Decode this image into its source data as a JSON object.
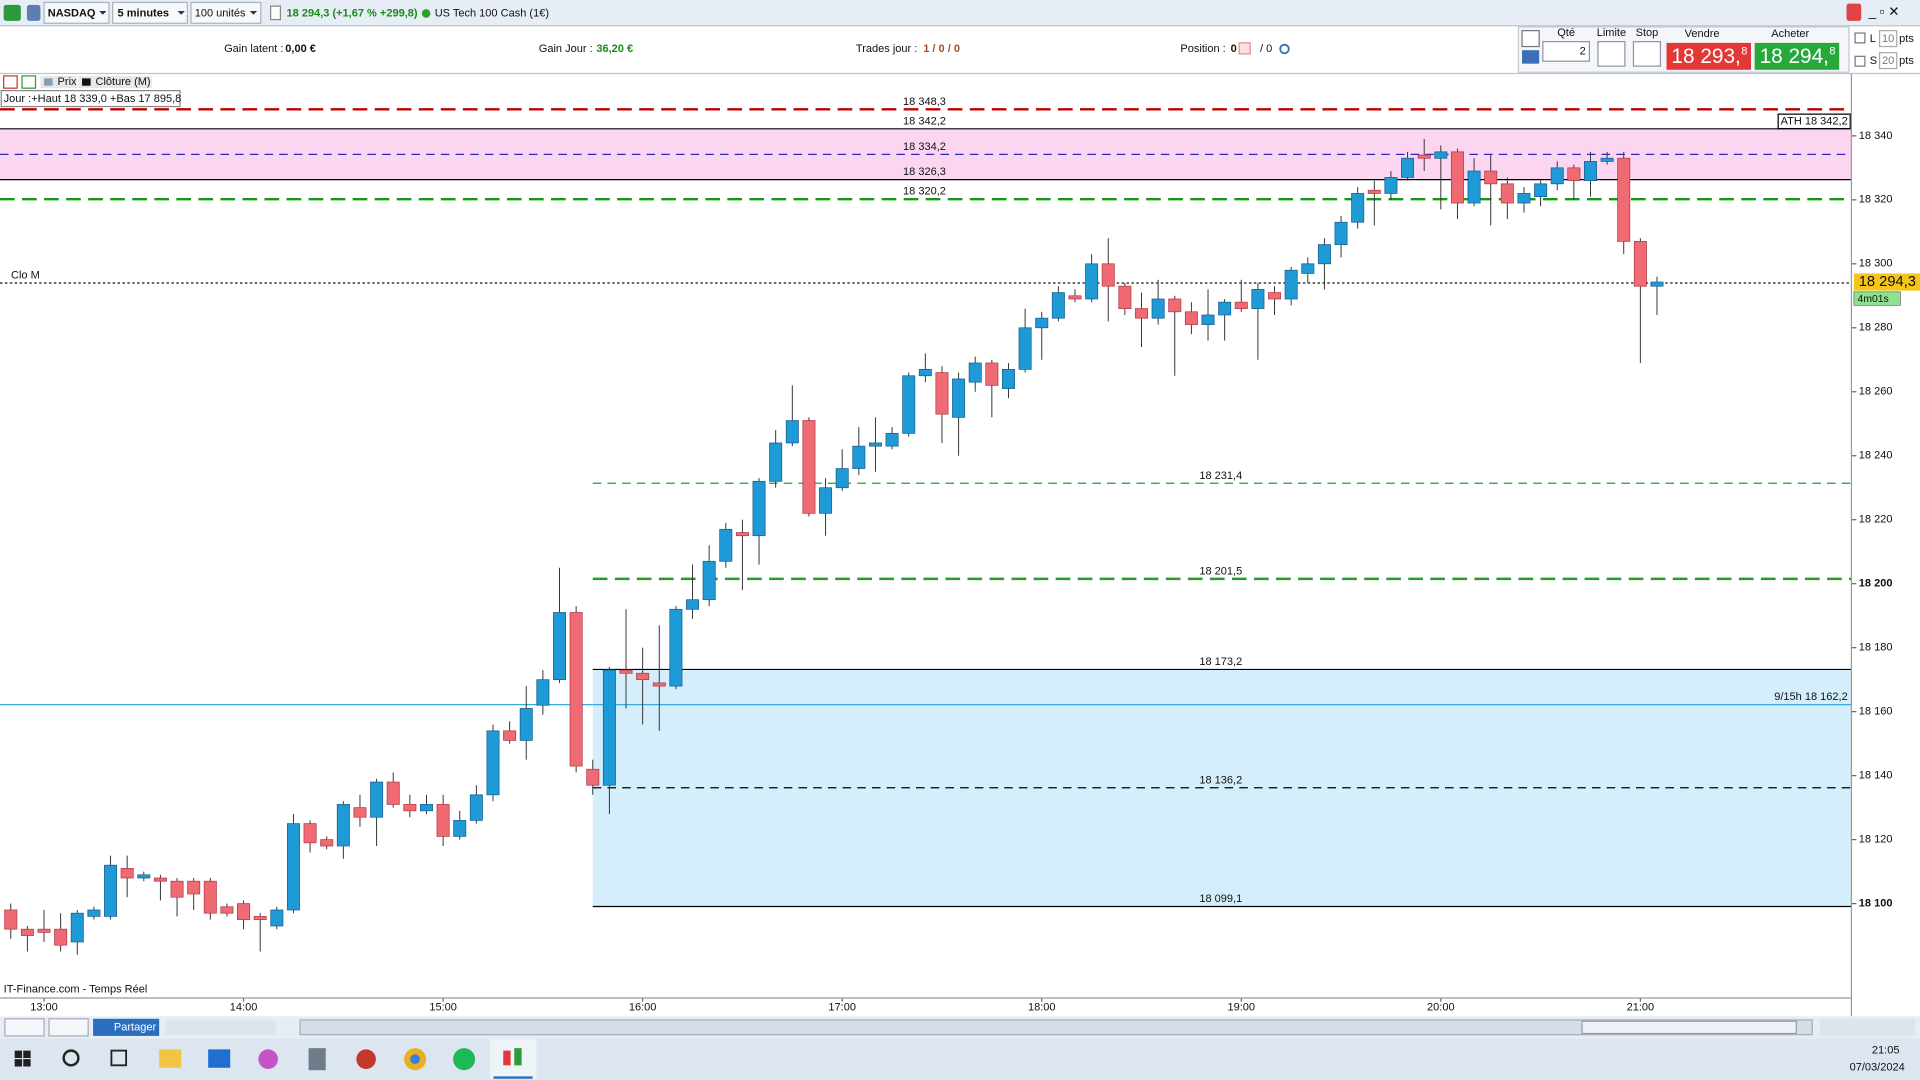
{
  "toolbar": {
    "symbol": "NASDAQ",
    "interval": "5 minutes",
    "size": "100 unités",
    "quote": "18 294,3 (+1,67 % +299,8)",
    "instrument": "US Tech 100 Cash (1€)"
  },
  "account": {
    "gain_latent_label": "Gain latent :",
    "gain_latent": "0,00 €",
    "gain_jour_label": "Gain Jour :",
    "gain_jour": "36,20 €",
    "trades_label": "Trades jour :",
    "trades": "1 / 0 / 0",
    "position_label": "Position :",
    "position": "0",
    "position_orders": "/ 0"
  },
  "order": {
    "qty_label": "Qté",
    "qty": "2",
    "limit": "Limite",
    "stop": "Stop",
    "sell_label": "Vendre",
    "sell": "18 293,",
    "sell_decimal": "8",
    "buy_label": "Acheter",
    "buy": "18 294,",
    "buy_decimal": "8",
    "long": "L",
    "long_pts": "10",
    "short": "S",
    "short_pts": "20",
    "pts": "pts"
  },
  "legend": {
    "price": "Prix",
    "close": "Clôture (M)",
    "day": "Jour :+Haut 18 339,0 +Bas 17 895,8"
  },
  "chart_data": {
    "type": "candlestick",
    "categories": [
      null,
      null,
      "13:00",
      null,
      null,
      null,
      null,
      null,
      null,
      null,
      null,
      null,
      null,
      null,
      "14:00",
      null,
      null,
      null,
      null,
      null,
      null,
      null,
      null,
      null,
      null,
      null,
      "15:00",
      null,
      null,
      null,
      null,
      null,
      null,
      null,
      null,
      null,
      null,
      null,
      "16:00",
      null,
      null,
      null,
      null,
      null,
      null,
      null,
      null,
      null,
      null,
      null,
      "17:00",
      null,
      null,
      null,
      null,
      null,
      null,
      null,
      null,
      null,
      null,
      null,
      "18:00",
      null,
      null,
      null,
      null,
      null,
      null,
      null,
      null,
      null,
      null,
      null,
      "19:00",
      null,
      null,
      null,
      null,
      null,
      null,
      null,
      null,
      null,
      null,
      null,
      "20:00",
      null,
      null,
      null,
      null,
      null,
      null,
      null,
      null,
      null,
      null,
      null,
      "21:00",
      null
    ],
    "open": [
      18098,
      18092,
      18092,
      18092,
      18088,
      18096,
      18096,
      18111,
      18108,
      18108,
      18107,
      18107,
      18107,
      18099,
      18100,
      18096,
      18093,
      18098,
      18125,
      18120,
      18118,
      18130,
      18127,
      18138,
      18131,
      18129,
      18131,
      18121,
      18126,
      18134,
      18154,
      18151,
      18162,
      18170,
      18191,
      18142,
      18137,
      18173,
      18172,
      18169,
      18168,
      18192,
      18195,
      18207,
      18216,
      18215,
      18232,
      18244,
      18251,
      18222,
      18230,
      18236,
      18243,
      18243,
      18247,
      18265,
      18266,
      18252,
      18263,
      18269,
      18261,
      18267,
      18280,
      18283,
      18290,
      18289,
      18300,
      18293,
      18286,
      18283,
      18289,
      18285,
      18281,
      18284,
      18288,
      18286,
      18291,
      18289,
      18297,
      18300,
      18306,
      18313,
      18323,
      18322,
      18327,
      18334,
      18333,
      18335,
      18319,
      18329,
      18325,
      18319,
      18321,
      18325,
      18330,
      18326,
      18332,
      18333,
      18307,
      18293
    ],
    "high": [
      18100,
      18093,
      18098,
      18097,
      18098,
      18099,
      18115,
      18115,
      18110,
      18109,
      18108,
      18108,
      18108,
      18100,
      18101,
      18097,
      18099,
      18128,
      18126,
      18121,
      18132,
      18134,
      18139,
      18141,
      18134,
      18134,
      18134,
      18129,
      18137,
      18156,
      18157,
      18168,
      18173,
      18205,
      18193,
      18145,
      18174,
      18192,
      18180,
      18187,
      18193,
      18206,
      18212,
      18219,
      18220,
      18233,
      18248,
      18262,
      18252,
      18233,
      18242,
      18249,
      18252,
      18249,
      18266,
      18272,
      18268,
      18266,
      18271,
      18270,
      18269,
      18286,
      18285,
      18293,
      18292,
      18303,
      18308,
      18294,
      18291,
      18295,
      18290,
      18288,
      18292,
      18289,
      18295,
      18294,
      18293,
      18299,
      18302,
      18308,
      18315,
      18324,
      18326,
      18329,
      18335,
      18339,
      18337,
      18336,
      18333,
      18334,
      18327,
      18324,
      18326,
      18332,
      18331,
      18335,
      18335,
      18335,
      18308,
      18296
    ],
    "low": [
      18089,
      18085,
      18088,
      18085,
      18084,
      18095,
      18095,
      18102,
      18107,
      18101,
      18096,
      18098,
      18095,
      18096,
      18092,
      18085,
      18092,
      18097,
      18116,
      18117,
      18114,
      18124,
      18118,
      18130,
      18127,
      18128,
      18118,
      18120,
      18125,
      18132,
      18150,
      18145,
      18159,
      18169,
      18141,
      18134,
      18128,
      18161,
      18156,
      18154,
      18167,
      18189,
      18193,
      18205,
      18198,
      18206,
      18230,
      18243,
      18221,
      18215,
      18229,
      18234,
      18235,
      18242,
      18246,
      18263,
      18244,
      18240,
      18260,
      18252,
      18258,
      18266,
      18270,
      18282,
      18288,
      18288,
      18282,
      18284,
      18274,
      18281,
      18265,
      18278,
      18276,
      18276,
      18285,
      18270,
      18284,
      18287,
      18294,
      18292,
      18302,
      18311,
      18312,
      18320,
      18326,
      18329,
      18317,
      18314,
      18318,
      18312,
      18314,
      18316,
      18318,
      18323,
      18320,
      18321,
      18331,
      18303,
      18269,
      18284
    ],
    "close": [
      18092,
      18090,
      18091,
      18087,
      18097,
      18098,
      18112,
      18108,
      18109,
      18107,
      18102,
      18103,
      18097,
      18097,
      18095,
      18095,
      18098,
      18125,
      18119,
      18118,
      18131,
      18127,
      18138,
      18131,
      18129,
      18131,
      18121,
      18126,
      18134,
      18154,
      18151,
      18161,
      18170,
      18191,
      18143,
      18137,
      18173,
      18172,
      18170,
      18168,
      18192,
      18195,
      18207,
      18217,
      18215,
      18232,
      18244,
      18251,
      18222,
      18230,
      18236,
      18243,
      18244,
      18247,
      18265,
      18267,
      18253,
      18264,
      18269,
      18262,
      18267,
      18280,
      18283,
      18291,
      18289,
      18300,
      18293,
      18286,
      18283,
      18289,
      18285,
      18281,
      18284,
      18288,
      18286,
      18292,
      18289,
      18298,
      18300,
      18306,
      18313,
      18322,
      18322,
      18327,
      18333,
      18333,
      18335,
      18319,
      18329,
      18325,
      18319,
      18322,
      18325,
      18330,
      18326,
      18332,
      18333,
      18307,
      18293,
      18294.3
    ],
    "up_color": "#1e9ad6",
    "down_color": "#f06a74",
    "ylim": [
      18070.5,
      18359.5
    ],
    "yticks": [
      {
        "value": 18100,
        "label": "18 100",
        "bold": true
      },
      {
        "value": 18120,
        "label": "18 120"
      },
      {
        "value": 18140,
        "label": "18 140"
      },
      {
        "value": 18160,
        "label": "18 160"
      },
      {
        "value": 18180,
        "label": "18 180"
      },
      {
        "value": 18200,
        "label": "18 200",
        "bold": true
      },
      {
        "value": 18220,
        "label": "18 220"
      },
      {
        "value": 18240,
        "label": "18 240"
      },
      {
        "value": 18260,
        "label": "18 260"
      },
      {
        "value": 18280,
        "label": "18 280"
      },
      {
        "value": 18300,
        "label": "18 300"
      },
      {
        "value": 18320,
        "label": "18 320"
      },
      {
        "value": 18340,
        "label": "18 340"
      }
    ],
    "zones": [
      {
        "from": 18342.2,
        "to": 18326.3,
        "color": "#fcd6f0"
      }
    ],
    "zone_box": {
      "from": 18173.2,
      "to": 18099.1,
      "color": "#d4effb"
    },
    "levels": [
      {
        "value": 18348.3,
        "label": "18 348,3",
        "color": "#c00000",
        "style": "dashed-thick"
      },
      {
        "value": 18342.2,
        "label": "18 342,2",
        "color": "#000000",
        "style": "solid",
        "tag": "ATH 18 342,2"
      },
      {
        "value": 18334.2,
        "label": "18 334,2",
        "color": "#2a2ac0",
        "style": "dashed"
      },
      {
        "value": 18326.3,
        "label": "18 326,3",
        "color": "#000000",
        "style": "solid"
      },
      {
        "value": 18320.2,
        "label": "18 320,2",
        "color": "#139a13",
        "style": "dashed-thick"
      },
      {
        "value": 18162.2,
        "color": "#3aa8d8",
        "style": "solid",
        "tag": "9/15h 18 162,2"
      }
    ],
    "zone_levels": [
      {
        "value": 18231.4,
        "label": "18 231,4",
        "color": "#2a9a2a",
        "style": "dashed"
      },
      {
        "value": 18201.5,
        "label": "18 201,5",
        "color": "#2a9a2a",
        "style": "dashed-thick"
      },
      {
        "value": 18173.2,
        "label": "18 173,2",
        "color": "#000000",
        "style": "solid"
      },
      {
        "value": 18136.2,
        "label": "18 136,2",
        "color": "#000000",
        "style": "dashed"
      },
      {
        "value": 18099.1,
        "label": "18 099,1",
        "color": "#000000",
        "style": "solid"
      }
    ],
    "clo": {
      "value": 18294,
      "label": "Clo M",
      "style": "dotted"
    },
    "last_price": {
      "value": 18294.3,
      "label": "18 294,3",
      "timer": "4m01s"
    }
  },
  "footer": {
    "source": "IT-Finance.com - Temps Réel",
    "share": "Partager"
  },
  "taskbar": {
    "time": "21:05",
    "date": "07/03/2024"
  }
}
